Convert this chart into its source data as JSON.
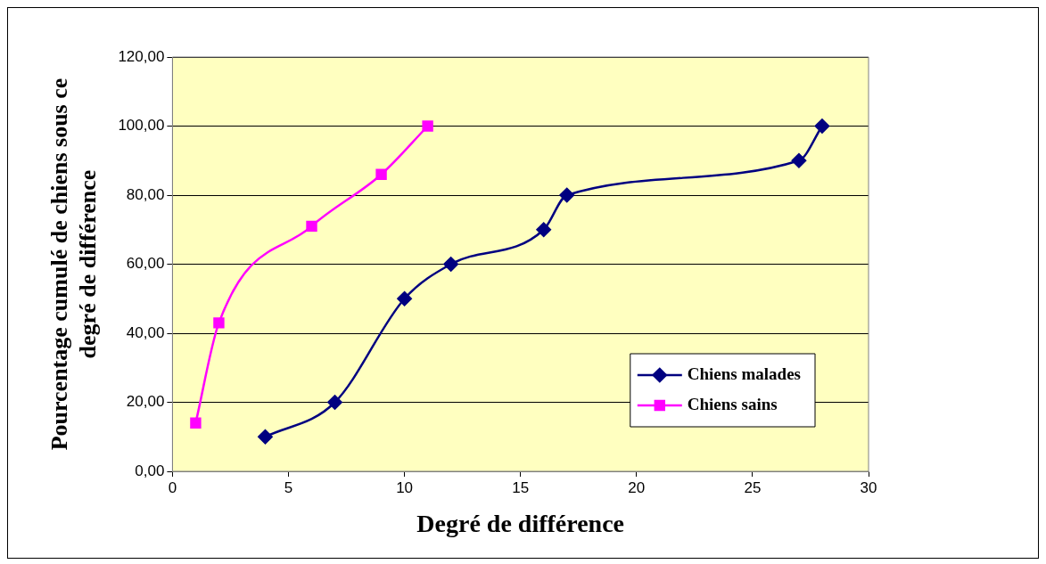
{
  "chart_data": {
    "type": "line",
    "xlabel": "Degré de différence",
    "ylabel": "Pourcentage cumulé de chiens sous ce degré de différence",
    "series": [
      {
        "name": "Chiens malades",
        "color": "#000080",
        "marker": "diamond",
        "x": [
          4,
          7,
          10,
          12,
          16,
          17,
          27,
          28
        ],
        "values": [
          10,
          20,
          50,
          60,
          70,
          80,
          90,
          100
        ]
      },
      {
        "name": "Chiens sains",
        "color": "#ff00ff",
        "marker": "square",
        "x": [
          1,
          2,
          6,
          9,
          11
        ],
        "values": [
          14,
          43,
          71,
          86,
          100
        ]
      }
    ],
    "xlim": [
      0,
      30
    ],
    "xticks": [
      0,
      5,
      10,
      15,
      20,
      25,
      30
    ],
    "ylim": [
      0,
      120
    ],
    "yticks": [
      {
        "value": 0,
        "label": "0,00"
      },
      {
        "value": 20,
        "label": "20,00"
      },
      {
        "value": 40,
        "label": "40,00"
      },
      {
        "value": 60,
        "label": "60,00"
      },
      {
        "value": 80,
        "label": "80,00"
      },
      {
        "value": 100,
        "label": "100,00"
      },
      {
        "value": 120,
        "label": "120,00"
      }
    ],
    "grid": "y",
    "legend": "bottom right"
  }
}
